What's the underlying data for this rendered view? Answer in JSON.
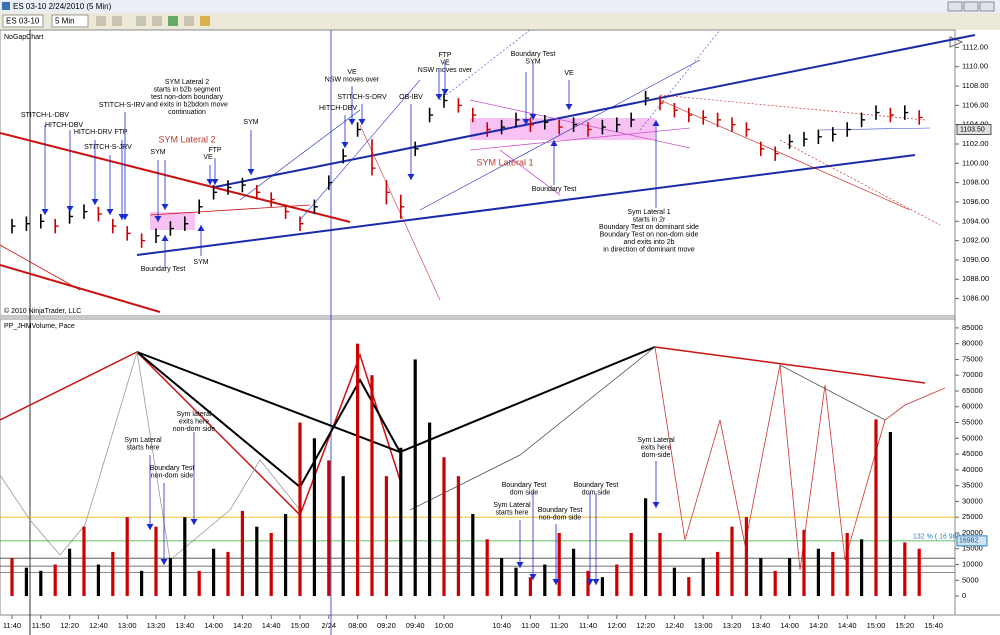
{
  "window": {
    "title": "ES 03-10  2/24/2010 (5 Min)",
    "instrument": "ES 03-10",
    "interval": "5 Min"
  },
  "chart_data": [
    {
      "type": "ohlc",
      "title": "NoGapChart",
      "copyright": "© 2010 NinjaTrader, LLC",
      "ylim": [
        1084.3,
        1113.8
      ],
      "yticks": [
        {
          "value": 1086,
          "label": "1086.00"
        },
        {
          "value": 1088,
          "label": "1088.00"
        },
        {
          "value": 1090,
          "label": "1090.00"
        },
        {
          "value": 1092,
          "label": "1092.00"
        },
        {
          "value": 1094,
          "label": "1094.00"
        },
        {
          "value": 1096,
          "label": "1096.00"
        },
        {
          "value": 1098,
          "label": "1098.00"
        },
        {
          "value": 1100,
          "label": "1100.00"
        },
        {
          "value": 1102,
          "label": "1102.00"
        },
        {
          "value": 1104,
          "label": "1104.00"
        },
        {
          "value": 1106,
          "label": "1106.00"
        },
        {
          "value": 1108,
          "label": "1108.00"
        },
        {
          "value": 1110,
          "label": "1110.00"
        },
        {
          "value": 1112,
          "label": "1112.00"
        }
      ],
      "last_price": {
        "value": 1103.5,
        "label": "1103.50"
      },
      "high": [
        1094.25,
        1094.5,
        1094.75,
        1094.25,
        1095.25,
        1095.75,
        1095.5,
        1094.25,
        1093.5,
        1092.75,
        1093.25,
        1094,
        1094.5,
        1096.25,
        1097.75,
        1098.25,
        1098.5,
        1097.75,
        1097,
        1095.75,
        1094.5,
        1096.25,
        1098.75,
        1101.5,
        1104.25,
        1102.5,
        1098.25,
        1096.75,
        1102.25,
        1105.75,
        1107.25,
        1106.75,
        1105.75,
        1104.25,
        1104.5,
        1105.25,
        1104.75,
        1105,
        1104.5,
        1104.75,
        1104.25,
        1104.5,
        1104.75,
        1105.25,
        1107.5,
        1107,
        1106.25,
        1105.75,
        1105.5,
        1105.25,
        1104.75,
        1104.25,
        1102.25,
        1101.75,
        1103,
        1103.25,
        1103.5,
        1103.75,
        1104.25,
        1105.25,
        1106,
        1105.75,
        1106,
        1105.5,
        null
      ],
      "low": [
        1092.75,
        1093,
        1093.25,
        1092.75,
        1093.75,
        1094.25,
        1094,
        1092.75,
        1092,
        1091.25,
        1091.75,
        1092.5,
        1093,
        1094.75,
        1096.25,
        1096.75,
        1097,
        1096.25,
        1095.5,
        1094.25,
        1093,
        1094.75,
        1097.25,
        1100,
        1102.75,
        1098.75,
        1095.75,
        1094.25,
        1100.75,
        1104.25,
        1105.75,
        1105.25,
        1104.25,
        1102.75,
        1103,
        1103.75,
        1103.25,
        1103.5,
        1103,
        1103.25,
        1102.75,
        1103,
        1103.25,
        1103.75,
        1106,
        1105.5,
        1104.75,
        1104.25,
        1104,
        1103.75,
        1103.25,
        1102.75,
        1100.75,
        1100.25,
        1101.5,
        1101.75,
        1102,
        1102.25,
        1102.75,
        1103.75,
        1104.5,
        1104.25,
        1104.5,
        1104,
        null
      ],
      "close": [
        1093.5,
        1093.75,
        1094,
        1093.5,
        1094.5,
        1095,
        1094.75,
        1093.5,
        1092.75,
        1092,
        1092.5,
        1093.25,
        1093.75,
        1095.5,
        1097,
        1097.5,
        1097.75,
        1097,
        1096.25,
        1095,
        1093.75,
        1095.5,
        1098,
        1100.75,
        1103.5,
        1099.5,
        1097,
        1095.5,
        1101.5,
        1105,
        1106.5,
        1106,
        1105,
        1103.5,
        1103.75,
        1104.5,
        1104,
        1104.25,
        1103.75,
        1104,
        1103.5,
        1103.75,
        1104,
        1104.5,
        1106.75,
        1106.25,
        1105.5,
        1105,
        1104.75,
        1104.5,
        1104,
        1103.5,
        1101.5,
        1101,
        1102.25,
        1102.5,
        1102.75,
        1103,
        1103.5,
        1104.5,
        1105.25,
        1105,
        1105.25,
        1104.75,
        null
      ],
      "annotations": [
        {
          "lines": [
            "STITCH-L-DBV"
          ],
          "color": "#000000"
        },
        {
          "lines": [
            "HITCH-DBV"
          ],
          "color": "#000000"
        },
        {
          "lines": [
            "HITCH-DRV"
          ],
          "color": "#000000"
        },
        {
          "lines": [
            "STITCH-S-JRV"
          ],
          "color": "#000000"
        },
        {
          "lines": [
            "STITCH-S-IRV"
          ],
          "color": "#000000"
        },
        {
          "lines": [
            "FTP"
          ],
          "color": "#000000"
        },
        {
          "lines": [
            "SYM Lateral 2",
            "starts in b2b segment",
            "test non-dom boundary",
            "and exits in b2bdom move",
            "continuation"
          ],
          "color": "#000000"
        },
        {
          "lines": [
            "SYM Lateral 2"
          ],
          "color": "#c0392b"
        },
        {
          "lines": [
            "SYM"
          ],
          "color": "#000000"
        },
        {
          "lines": [
            "SYM"
          ],
          "color": "#000000"
        },
        {
          "lines": [
            "VE"
          ],
          "color": "#000000"
        },
        {
          "lines": [
            "FTP"
          ],
          "color": "#000000"
        },
        {
          "lines": [
            "Boundary Test"
          ],
          "color": "#000000"
        },
        {
          "lines": [
            "SYM"
          ],
          "color": "#000000"
        },
        {
          "lines": [
            "VE",
            "NSW moves over"
          ],
          "color": "#000000"
        },
        {
          "lines": [
            "HITCH-DBV"
          ],
          "color": "#000000"
        },
        {
          "lines": [
            "STITCH-S-DRV"
          ],
          "color": "#000000"
        },
        {
          "lines": [
            "OB-IBV"
          ],
          "color": "#000000"
        },
        {
          "lines": [
            "FTP",
            "VE",
            "NSW moves over"
          ],
          "color": "#000000"
        },
        {
          "lines": [
            "Boundary Test",
            "SYM"
          ],
          "color": "#000000"
        },
        {
          "lines": [
            "VE"
          ],
          "color": "#000000"
        },
        {
          "lines": [
            "SYM Lateral 1"
          ],
          "color": "#c0392b"
        },
        {
          "lines": [
            "Boundary Test"
          ],
          "color": "#000000"
        },
        {
          "lines": [
            "Sym Lateral 1",
            "starts in 2r",
            "Boundary Test on dominant side",
            "Boundary Test on non-dom side",
            "and exits into 2b",
            "in direction of dominant move"
          ],
          "color": "#000000"
        }
      ]
    },
    {
      "type": "bar",
      "title": "PP_JHMVolume, Pace",
      "ylim": [
        -6000,
        87500
      ],
      "yticks": [
        0,
        5000,
        10000,
        15000,
        20000,
        25000,
        30000,
        35000,
        40000,
        45000,
        50000,
        55000,
        60000,
        65000,
        70000,
        75000,
        80000,
        85000
      ],
      "categories": [
        "11:40",
        null,
        "11:50",
        null,
        "12:20",
        null,
        "12:40",
        null,
        "13:00",
        null,
        "13:20",
        null,
        "13:40",
        null,
        "14:00",
        null,
        "14:20",
        null,
        "14:40",
        null,
        "15:00",
        null,
        "2/24",
        null,
        "08:00",
        null,
        "09:20",
        null,
        "09:40",
        null,
        "10:00",
        null,
        null,
        null,
        "10:40",
        null,
        "11:00",
        null,
        "11:20",
        null,
        "11:40",
        null,
        "12:00",
        null,
        "12:20",
        null,
        "12:40",
        null,
        "13:00",
        null,
        "13:20",
        null,
        "13:40",
        null,
        "14:00",
        null,
        "14:20",
        null,
        "14:40",
        null,
        "15:00",
        null,
        "15:20",
        null,
        "15:40"
      ],
      "values": [
        12000,
        9000,
        8000,
        10000,
        15000,
        22000,
        10000,
        14000,
        25000,
        8000,
        22000,
        12000,
        25000,
        8000,
        15000,
        14000,
        27000,
        22000,
        20000,
        26000,
        55000,
        50000,
        43000,
        38000,
        80000,
        70000,
        38000,
        47000,
        75000,
        55000,
        44000,
        38000,
        26000,
        18000,
        12000,
        9000,
        6000,
        10000,
        20000,
        15000,
        8000,
        6000,
        10000,
        20000,
        31000,
        20000,
        9000,
        6000,
        12000,
        14000,
        22000,
        25000,
        12000,
        8000,
        12000,
        21000,
        15000,
        14000,
        20000,
        18000,
        56000,
        52000,
        17000,
        15000,
        null
      ],
      "colors": [
        "#cc0000",
        "#000000",
        "#000000",
        "#cc0000",
        "#000000",
        "#cc0000",
        "#000000",
        "#cc0000",
        "#cc0000",
        "#000000",
        "#cc0000",
        "#000000",
        "#000000",
        "#cc0000",
        "#000000",
        "#cc0000",
        "#cc0000",
        "#000000",
        "#cc0000",
        "#000000",
        "#cc0000",
        "#000000",
        "#cc0000",
        "#000000",
        "#cc0000",
        "#cc0000",
        "#cc0000",
        "#000000",
        "#000000",
        "#000000",
        "#cc0000",
        "#cc0000",
        "#000000",
        "#cc0000",
        "#000000",
        "#000000",
        "#cc0000",
        "#000000",
        "#cc0000",
        "#000000",
        "#cc0000",
        "#000000",
        "#cc0000",
        "#cc0000",
        "#000000",
        "#cc0000",
        "#000000",
        "#cc0000",
        "#000000",
        "#cc0000",
        "#cc0000",
        "#cc0000",
        "#000000",
        "#cc0000",
        "#000000",
        "#cc0000",
        "#000000",
        "#cc0000",
        "#cc0000",
        "#000000",
        "#cc0000",
        "#000000",
        "#cc0000",
        "#cc0000",
        null
      ],
      "reference_lines": [
        {
          "value": 25000,
          "color": "#e8b800"
        },
        {
          "value": 17500,
          "color": "#33aa33"
        },
        {
          "value": 12000,
          "color": "#444444"
        },
        {
          "value": 9500,
          "color": "#444444"
        },
        {
          "value": 7500,
          "color": "#666666"
        }
      ],
      "pace_label": "132 % ( 16 982 )",
      "pace_tag": "16982",
      "annotations": [
        {
          "lines": [
            "Sym Lateral",
            "starts here"
          ]
        },
        {
          "lines": [
            "Sym lateral",
            "exits here",
            "non-dom side"
          ]
        },
        {
          "lines": [
            "Boundary Test",
            "non-dom side"
          ]
        },
        {
          "lines": [
            "Boundary Test",
            "dom side"
          ]
        },
        {
          "lines": [
            "Sym Lateral",
            "starts here"
          ]
        },
        {
          "lines": [
            "Boundary Test",
            "non-dom side"
          ]
        },
        {
          "lines": [
            "Boundary Test",
            "dom side"
          ]
        },
        {
          "lines": [
            "Sym Lateral",
            "exits here",
            "dom-side"
          ]
        }
      ]
    }
  ]
}
